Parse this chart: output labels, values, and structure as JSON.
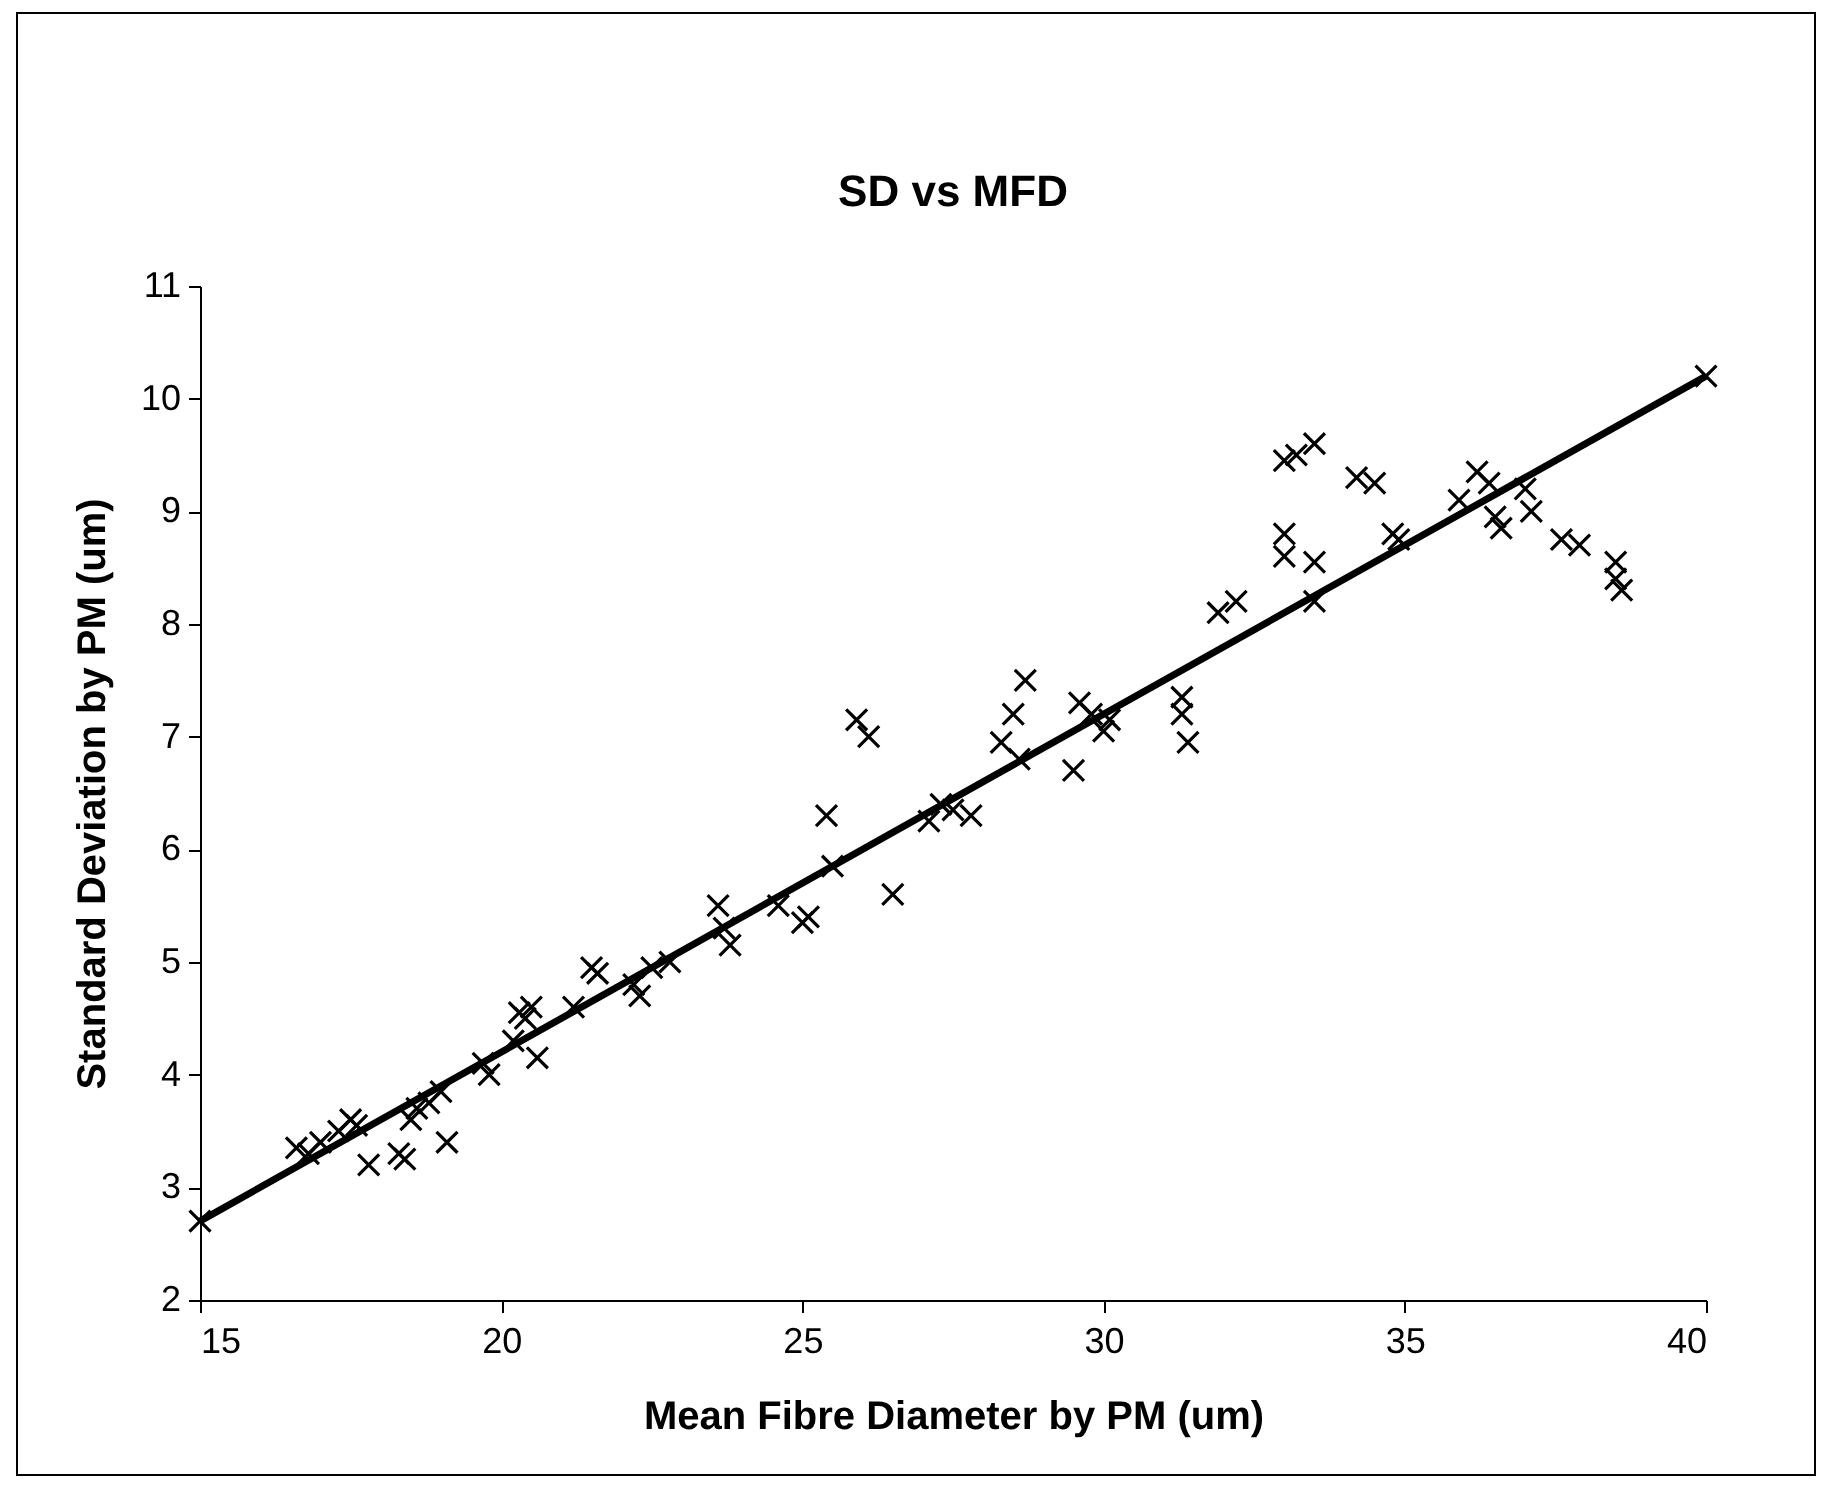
{
  "chart_data": {
    "type": "scatter",
    "title": "SD vs MFD",
    "xlabel": "Mean Fibre Diameter by PM (um)",
    "ylabel": "Standard Deviation by PM (um)",
    "xlim": [
      15,
      40
    ],
    "xticks": [
      15,
      20,
      25,
      30,
      35,
      40
    ],
    "ylim": [
      2,
      11
    ],
    "yticks": [
      2,
      3,
      4,
      5,
      6,
      7,
      8,
      9,
      10,
      11
    ],
    "marker": "cross",
    "series": [
      {
        "color": "#000000",
        "x": [
          15,
          16.6,
          16.8,
          17.0,
          17.3,
          17.5,
          17.6,
          17.8,
          18.3,
          18.4,
          18.5,
          18.6,
          18.8,
          19.0,
          19.1,
          19.7,
          19.8,
          20.2,
          20.3,
          20.4,
          20.5,
          20.6,
          21.2,
          21.5,
          21.6,
          22.2,
          22.3,
          22.5,
          22.8,
          23.6,
          23.7,
          23.8,
          24.6,
          25.0,
          25.1,
          25.4,
          25.5,
          25.9,
          26.1,
          26.5,
          27.1,
          27.3,
          27.5,
          27.8,
          28.3,
          28.5,
          28.6,
          28.7,
          29.5,
          29.6,
          29.8,
          30.0,
          30.1,
          31.3,
          31.3,
          31.4,
          31.9,
          32.2,
          33.0,
          33.2,
          33.5,
          33.0,
          33.0,
          33.5,
          33.5,
          34.2,
          34.5,
          34.8,
          34.9,
          35.9,
          36.2,
          36.4,
          36.5,
          36.6,
          37.0,
          37.1,
          37.6,
          37.9,
          38.5,
          38.5,
          38.6,
          40
        ],
        "values": [
          2.7,
          3.35,
          3.3,
          3.4,
          3.5,
          3.6,
          3.55,
          3.2,
          3.3,
          3.25,
          3.6,
          3.7,
          3.75,
          3.85,
          3.4,
          4.1,
          4.0,
          4.3,
          4.55,
          4.5,
          4.6,
          4.15,
          4.6,
          4.95,
          4.9,
          4.8,
          4.7,
          4.95,
          5.0,
          5.5,
          5.3,
          5.15,
          5.5,
          5.35,
          5.4,
          6.3,
          5.85,
          7.15,
          7.0,
          5.6,
          6.25,
          6.4,
          6.35,
          6.3,
          6.95,
          7.2,
          6.8,
          7.5,
          6.7,
          7.3,
          7.2,
          7.05,
          7.15,
          7.35,
          7.2,
          6.95,
          8.1,
          8.2,
          9.45,
          9.5,
          9.6,
          8.8,
          8.6,
          8.55,
          8.2,
          9.3,
          9.25,
          8.8,
          8.75,
          9.1,
          9.35,
          9.25,
          8.95,
          8.85,
          9.2,
          9.0,
          8.75,
          8.7,
          8.55,
          8.4,
          8.3,
          10.2
        ]
      },
      {
        "type": "line",
        "color": "#000000",
        "marker": "none",
        "x": [
          15,
          40
        ],
        "values": [
          2.7,
          10.2
        ]
      }
    ]
  }
}
